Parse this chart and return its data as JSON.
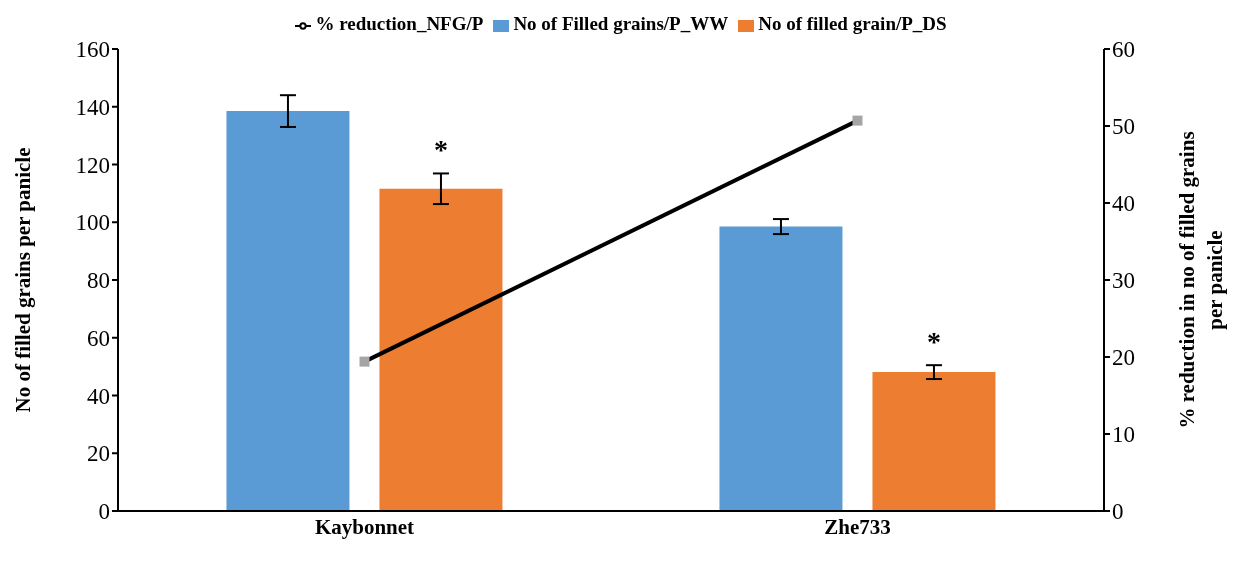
{
  "chart_data": {
    "type": "bar",
    "categories": [
      "Kaybonnet",
      "Zhe733"
    ],
    "ylabel": "No of filled grains per panicle",
    "y2label": "% reduction in no of filled grains per panicle",
    "series": [
      {
        "name": "No of Filled grains/P_WW",
        "color": "#5b9bd5",
        "values": [
          138.5,
          98.5
        ],
        "errors": [
          5.5,
          2.6
        ]
      },
      {
        "name": "No of filled grain/P_DS",
        "color": "#ed7d31",
        "values": [
          111.6,
          48.1
        ],
        "errors": [
          5.3,
          2.4
        ],
        "value_labels": [
          "*",
          "*"
        ]
      },
      {
        "name": "% reduction_NFG/P",
        "type": "line",
        "axis": "y2",
        "color": "#000000",
        "values": [
          19.4,
          50.7
        ],
        "marker": "square"
      }
    ],
    "ylim": [
      0,
      160
    ],
    "yticks": [
      0,
      20,
      40,
      60,
      80,
      100,
      120,
      140,
      160
    ],
    "y2lim": [
      0,
      60
    ],
    "y2ticks": [
      0,
      10,
      20,
      30,
      40,
      50,
      60
    ],
    "legend": "top"
  }
}
